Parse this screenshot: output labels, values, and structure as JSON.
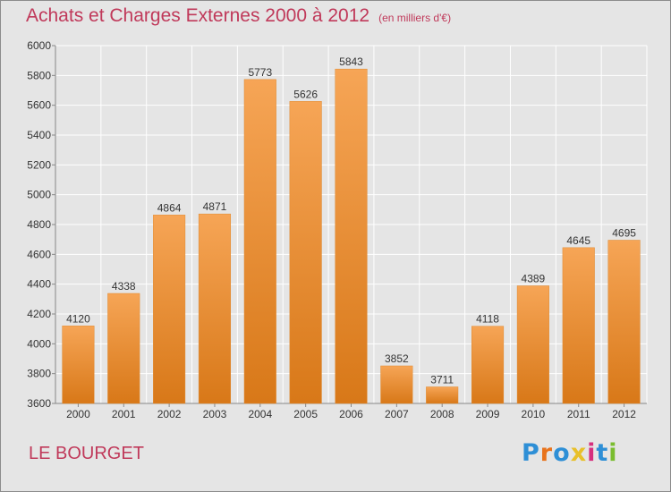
{
  "title": "Achats et Charges Externes 2000 à 2012",
  "subtitle": "(en milliers d'€)",
  "city": "LE BOURGET",
  "brand": {
    "text": "Proxiti",
    "letter_colors": [
      "#2e8fd6",
      "#e8731c",
      "#2e8fd6",
      "#e8c02a",
      "#d6307e",
      "#2e8fd6",
      "#7abd2f"
    ]
  },
  "colors": {
    "title": "#c0395a",
    "bar_light": "#f6a556",
    "bar_dark": "#d87818",
    "background": "#e5e5e5",
    "grid": "#ffffff"
  },
  "chart_data": {
    "type": "bar",
    "categories": [
      "2000",
      "2001",
      "2002",
      "2003",
      "2004",
      "2005",
      "2006",
      "2007",
      "2008",
      "2009",
      "2010",
      "2011",
      "2012"
    ],
    "values": [
      4120,
      4338,
      4864,
      4871,
      5773,
      5626,
      5843,
      3852,
      3711,
      4118,
      4389,
      4645,
      4695
    ],
    "ylim": [
      3600,
      6000
    ],
    "yticks": [
      3600,
      3800,
      4000,
      4200,
      4400,
      4600,
      4800,
      5000,
      5200,
      5400,
      5600,
      5800,
      6000
    ],
    "grid": true,
    "legend": "none",
    "xlabel": "",
    "ylabel": ""
  }
}
